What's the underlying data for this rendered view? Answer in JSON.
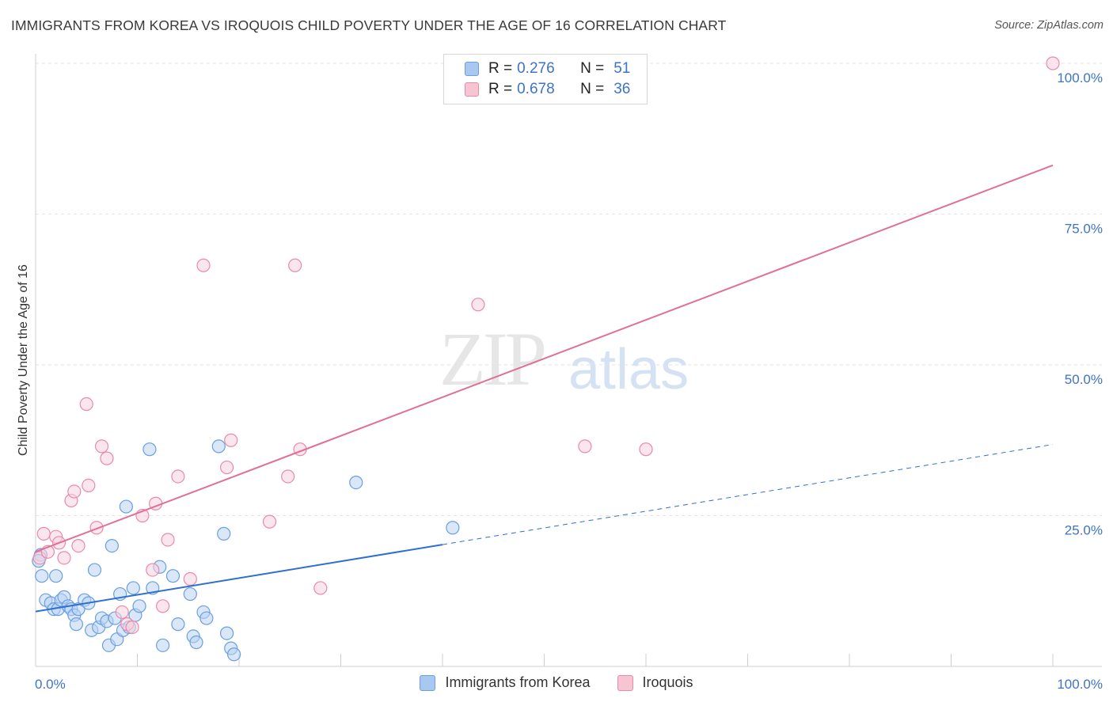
{
  "title": "IMMIGRANTS FROM KOREA VS IROQUOIS CHILD POVERTY UNDER THE AGE OF 16 CORRELATION CHART",
  "source": "Source: ZipAtlas.com",
  "watermark": {
    "zip": "ZIP",
    "atlas": "atlas"
  },
  "legend": {
    "rows": [
      {
        "r_label": "R =",
        "r_value": "0.276",
        "n_label": "N =",
        "n_value": "51",
        "color": "#a9c8f0",
        "border": "#6a9fe0"
      },
      {
        "r_label": "R =",
        "r_value": "0.678",
        "n_label": "N =",
        "n_value": "36",
        "color": "#f7c4d3",
        "border": "#e88aa8"
      }
    ]
  },
  "bottom_legend": [
    {
      "label": "Immigrants from Korea",
      "color": "#a9c8f0",
      "border": "#6a9fe0"
    },
    {
      "label": "Iroquois",
      "color": "#f7c4d3",
      "border": "#e88aa8"
    }
  ],
  "chart_data": {
    "type": "scatter",
    "xlabel": "",
    "ylabel": "Child Poverty Under the Age of 16",
    "xlim": [
      0,
      100
    ],
    "ylim": [
      0,
      100
    ],
    "x_tick_labels": [
      "0.0%",
      "100.0%"
    ],
    "y_ticks": [
      25,
      50,
      75,
      100
    ],
    "y_tick_labels": [
      "25.0%",
      "50.0%",
      "75.0%",
      "100.0%"
    ],
    "colors": {
      "korea": "#6a9fe0",
      "korea_fill": "#b9d3f3",
      "korea_line": "#2f6fcf",
      "iroquois": "#e88aa8",
      "iroquois_fill": "#f9d2de",
      "iroquois_line": "#e0709a"
    },
    "series": [
      {
        "name": "Immigrants from Korea",
        "points": [
          [
            0.5,
            18.5
          ],
          [
            0.6,
            15
          ],
          [
            1.0,
            11
          ],
          [
            1.5,
            10.5
          ],
          [
            1.8,
            9.5
          ],
          [
            2.0,
            15
          ],
          [
            2.2,
            9.5
          ],
          [
            2.5,
            11
          ],
          [
            2.8,
            11.5
          ],
          [
            3.2,
            10
          ],
          [
            3.5,
            9.5
          ],
          [
            3.8,
            8.5
          ],
          [
            4.0,
            7
          ],
          [
            4.2,
            9.5
          ],
          [
            4.8,
            11
          ],
          [
            5.2,
            10.5
          ],
          [
            5.5,
            6
          ],
          [
            5.8,
            16
          ],
          [
            6.2,
            6.5
          ],
          [
            6.5,
            8
          ],
          [
            7.0,
            7.5
          ],
          [
            7.2,
            3.5
          ],
          [
            7.5,
            20
          ],
          [
            7.8,
            8
          ],
          [
            8.0,
            4.5
          ],
          [
            8.3,
            12
          ],
          [
            8.6,
            6
          ],
          [
            8.9,
            26.5
          ],
          [
            9.2,
            6.5
          ],
          [
            9.6,
            13
          ],
          [
            9.8,
            8.5
          ],
          [
            10.2,
            10
          ],
          [
            11.2,
            36
          ],
          [
            11.5,
            13
          ],
          [
            12.2,
            16.5
          ],
          [
            12.5,
            3.5
          ],
          [
            13.5,
            15
          ],
          [
            14.0,
            7
          ],
          [
            15.2,
            12
          ],
          [
            15.5,
            5
          ],
          [
            15.8,
            4
          ],
          [
            16.5,
            9
          ],
          [
            16.8,
            8
          ],
          [
            18.0,
            36.5
          ],
          [
            18.5,
            22
          ],
          [
            18.8,
            5.5
          ],
          [
            19.2,
            3
          ],
          [
            19.5,
            2
          ],
          [
            31.5,
            30.5
          ],
          [
            41.0,
            23
          ],
          [
            0.3,
            17.5
          ]
        ],
        "trend": {
          "x0": 0,
          "y0": 9.1,
          "x1": 40.0,
          "y1": 20.2,
          "dash_x1": 100,
          "dash_y1": 36.8
        }
      },
      {
        "name": "Iroquois",
        "points": [
          [
            0.4,
            18
          ],
          [
            0.8,
            22
          ],
          [
            1.2,
            19
          ],
          [
            2.0,
            21.5
          ],
          [
            2.3,
            20.5
          ],
          [
            2.8,
            18
          ],
          [
            3.5,
            27.5
          ],
          [
            3.8,
            29
          ],
          [
            4.2,
            20
          ],
          [
            5.0,
            43.5
          ],
          [
            5.2,
            30
          ],
          [
            6.0,
            23
          ],
          [
            6.5,
            36.5
          ],
          [
            7.0,
            34.5
          ],
          [
            8.5,
            9
          ],
          [
            9.0,
            7
          ],
          [
            9.5,
            6.5
          ],
          [
            10.5,
            25
          ],
          [
            11.5,
            16
          ],
          [
            11.8,
            27
          ],
          [
            12.5,
            10
          ],
          [
            13.0,
            21
          ],
          [
            14.0,
            31.5
          ],
          [
            15.2,
            14.5
          ],
          [
            16.5,
            66.5
          ],
          [
            18.8,
            33
          ],
          [
            19.2,
            37.5
          ],
          [
            23.0,
            24
          ],
          [
            24.8,
            31.5
          ],
          [
            25.5,
            66.5
          ],
          [
            26.0,
            36
          ],
          [
            28.0,
            13
          ],
          [
            43.5,
            60
          ],
          [
            54.0,
            36.5
          ],
          [
            60.0,
            36
          ],
          [
            100.0,
            100
          ]
        ],
        "trend": {
          "x0": 0,
          "y0": 19.0,
          "x1": 100,
          "y1": 83.1
        }
      }
    ]
  }
}
